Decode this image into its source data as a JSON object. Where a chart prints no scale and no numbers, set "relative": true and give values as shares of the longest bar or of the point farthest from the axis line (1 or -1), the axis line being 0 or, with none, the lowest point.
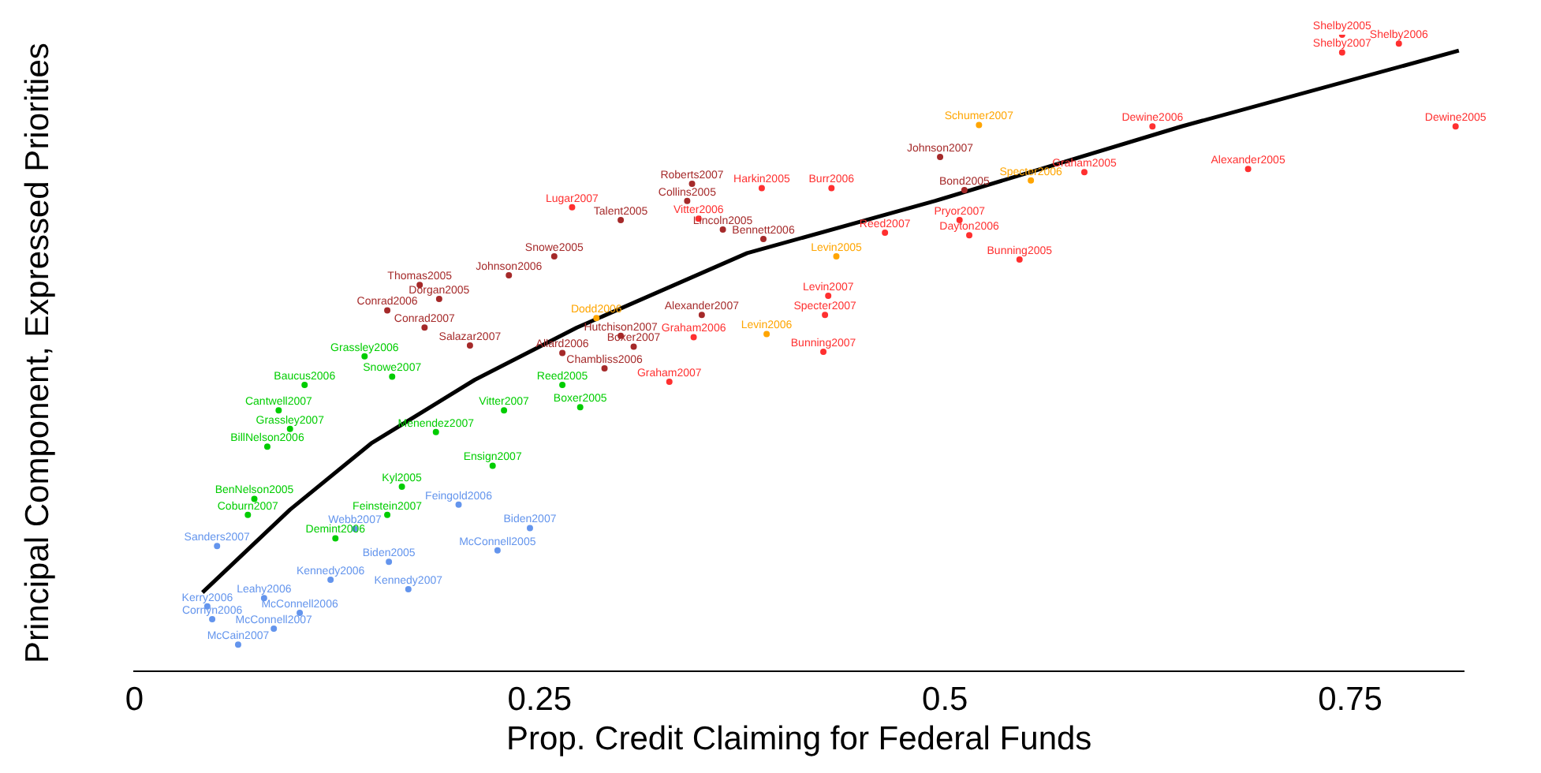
{
  "chart_data": {
    "type": "scatter",
    "xlabel": "Prop. Credit Claiming for Federal Funds",
    "ylabel": "Principal Component, Expressed Priorities",
    "relative": true,
    "xlim": [
      0,
      0.82
    ],
    "xticks": [
      0,
      0.25,
      0.5,
      0.75
    ],
    "grid": false,
    "legend": false,
    "marker": "circle",
    "series": [
      {
        "color": "#ff3030",
        "x": [
          0.745,
          0.745,
          0.78,
          0.628,
          0.815,
          0.687,
          0.586,
          0.546,
          0.509,
          0.515,
          0.27,
          0.348,
          0.387,
          0.43,
          0.345,
          0.33,
          0.426,
          0.425,
          0.428,
          0.463
        ],
        "values": [
          1.0,
          0.972,
          0.986,
          0.856,
          0.856,
          0.789,
          0.784,
          0.647,
          0.709,
          0.685,
          0.729,
          0.711,
          0.759,
          0.759,
          0.525,
          0.455,
          0.56,
          0.502,
          0.59,
          0.689
        ]
      },
      {
        "color": "#a52a2a",
        "x": [
          0.497,
          0.344,
          0.341,
          0.3,
          0.363,
          0.259,
          0.512,
          0.176,
          0.188,
          0.156,
          0.179,
          0.231,
          0.207,
          0.29,
          0.308,
          0.264,
          0.3,
          0.35,
          0.388
        ],
        "values": [
          0.808,
          0.766,
          0.739,
          0.709,
          0.694,
          0.652,
          0.756,
          0.607,
          0.585,
          0.567,
          0.54,
          0.622,
          0.512,
          0.476,
          0.51,
          0.5,
          0.527,
          0.56,
          0.679
        ]
      },
      {
        "color": "#ffa500",
        "x": [
          0.521,
          0.553,
          0.433,
          0.39,
          0.285
        ],
        "values": [
          0.858,
          0.771,
          0.652,
          0.53,
          0.555
        ]
      },
      {
        "color": "#00cd00",
        "x": [
          0.142,
          0.159,
          0.105,
          0.089,
          0.096,
          0.082,
          0.186,
          0.228,
          0.275,
          0.264,
          0.165,
          0.074,
          0.07,
          0.156,
          0.124,
          0.221
        ],
        "values": [
          0.495,
          0.463,
          0.45,
          0.41,
          0.381,
          0.353,
          0.376,
          0.41,
          0.415,
          0.45,
          0.29,
          0.271,
          0.246,
          0.246,
          0.209,
          0.323
        ]
      },
      {
        "color": "#6495ed",
        "x": [
          0.244,
          0.224,
          0.157,
          0.169,
          0.136,
          0.2,
          0.051,
          0.08,
          0.045,
          0.048,
          0.102,
          0.086,
          0.064,
          0.121
        ],
        "values": [
          0.225,
          0.19,
          0.172,
          0.129,
          0.224,
          0.262,
          0.197,
          0.115,
          0.102,
          0.082,
          0.092,
          0.067,
          0.042,
          0.144
        ]
      },
      {
        "type": "line",
        "marker": "none",
        "color": "#000000",
        "x": [
          0.042,
          0.096,
          0.146,
          0.21,
          0.273,
          0.378,
          0.494,
          0.646,
          0.817
        ],
        "values": [
          0.124,
          0.254,
          0.358,
          0.458,
          0.54,
          0.657,
          0.739,
          0.856,
          0.975
        ]
      }
    ],
    "annotations": [
      {
        "text": "Shelby2005",
        "x": 0.745,
        "y": 1.0
      },
      {
        "text": "Shelby2007",
        "x": 0.745,
        "y": 0.972
      },
      {
        "text": "Shelby2006",
        "x": 0.78,
        "y": 0.986
      },
      {
        "text": "Dewine2006",
        "x": 0.628,
        "y": 0.856
      },
      {
        "text": "Dewine2005",
        "x": 0.815,
        "y": 0.856
      },
      {
        "text": "Alexander2005",
        "x": 0.687,
        "y": 0.789
      },
      {
        "text": "Graham2005",
        "x": 0.586,
        "y": 0.784
      },
      {
        "text": "Bunning2005",
        "x": 0.546,
        "y": 0.647
      },
      {
        "text": "Pryor2007",
        "x": 0.509,
        "y": 0.709
      },
      {
        "text": "Dayton2006",
        "x": 0.515,
        "y": 0.685
      },
      {
        "text": "Lugar2007",
        "x": 0.27,
        "y": 0.729
      },
      {
        "text": "Vitter2006",
        "x": 0.348,
        "y": 0.711
      },
      {
        "text": "Harkin2005",
        "x": 0.387,
        "y": 0.759
      },
      {
        "text": "Burr2006",
        "x": 0.43,
        "y": 0.759
      },
      {
        "text": "Graham2006",
        "x": 0.345,
        "y": 0.525
      },
      {
        "text": "Graham2007",
        "x": 0.33,
        "y": 0.455
      },
      {
        "text": "Specter2007",
        "x": 0.426,
        "y": 0.56
      },
      {
        "text": "Bunning2007",
        "x": 0.425,
        "y": 0.502
      },
      {
        "text": "Levin2007",
        "x": 0.428,
        "y": 0.59
      },
      {
        "text": "Reed2007",
        "x": 0.463,
        "y": 0.689
      },
      {
        "text": "Johnson2007",
        "x": 0.497,
        "y": 0.808
      },
      {
        "text": "Roberts2007",
        "x": 0.344,
        "y": 0.766
      },
      {
        "text": "Collins2005",
        "x": 0.341,
        "y": 0.739
      },
      {
        "text": "Talent2005",
        "x": 0.3,
        "y": 0.709
      },
      {
        "text": "Lincoln2005",
        "x": 0.363,
        "y": 0.694
      },
      {
        "text": "Snowe2005",
        "x": 0.259,
        "y": 0.652
      },
      {
        "text": "Bond2005",
        "x": 0.512,
        "y": 0.756
      },
      {
        "text": "Thomas2005",
        "x": 0.176,
        "y": 0.607
      },
      {
        "text": "Dorgan2005",
        "x": 0.188,
        "y": 0.585
      },
      {
        "text": "Conrad2006",
        "x": 0.156,
        "y": 0.567
      },
      {
        "text": "Conrad2007",
        "x": 0.179,
        "y": 0.54
      },
      {
        "text": "Johnson2006",
        "x": 0.231,
        "y": 0.622
      },
      {
        "text": "Salazar2007",
        "x": 0.207,
        "y": 0.512
      },
      {
        "text": "Chambliss2006",
        "x": 0.29,
        "y": 0.476
      },
      {
        "text": "Boxer2007",
        "x": 0.308,
        "y": 0.51
      },
      {
        "text": "Allard2006",
        "x": 0.264,
        "y": 0.5
      },
      {
        "text": "Hutchison2007",
        "x": 0.3,
        "y": 0.527
      },
      {
        "text": "Alexander2007",
        "x": 0.35,
        "y": 0.56
      },
      {
        "text": "Bennett2006",
        "x": 0.388,
        "y": 0.679
      },
      {
        "text": "Schumer2007",
        "x": 0.521,
        "y": 0.858
      },
      {
        "text": "Specter2006",
        "x": 0.553,
        "y": 0.771
      },
      {
        "text": "Levin2005",
        "x": 0.433,
        "y": 0.652
      },
      {
        "text": "Levin2006",
        "x": 0.39,
        "y": 0.53
      },
      {
        "text": "Dodd2006",
        "x": 0.285,
        "y": 0.555
      },
      {
        "text": "Grassley2006",
        "x": 0.142,
        "y": 0.495
      },
      {
        "text": "Snowe2007",
        "x": 0.159,
        "y": 0.463
      },
      {
        "text": "Baucus2006",
        "x": 0.105,
        "y": 0.45
      },
      {
        "text": "Cantwell2007",
        "x": 0.089,
        "y": 0.41
      },
      {
        "text": "Grassley2007",
        "x": 0.096,
        "y": 0.381
      },
      {
        "text": "BillNelson2006",
        "x": 0.082,
        "y": 0.353
      },
      {
        "text": "Menendez2007",
        "x": 0.186,
        "y": 0.376
      },
      {
        "text": "Vitter2007",
        "x": 0.228,
        "y": 0.41
      },
      {
        "text": "Boxer2005",
        "x": 0.275,
        "y": 0.415
      },
      {
        "text": "Reed2005",
        "x": 0.264,
        "y": 0.45
      },
      {
        "text": "Kyl2005",
        "x": 0.165,
        "y": 0.29
      },
      {
        "text": "BenNelson2005",
        "x": 0.074,
        "y": 0.271
      },
      {
        "text": "Coburn2007",
        "x": 0.07,
        "y": 0.246
      },
      {
        "text": "Feinstein2007",
        "x": 0.156,
        "y": 0.246
      },
      {
        "text": "Demint2006",
        "x": 0.124,
        "y": 0.209
      },
      {
        "text": "Ensign2007",
        "x": 0.221,
        "y": 0.323
      },
      {
        "text": "Biden2007",
        "x": 0.244,
        "y": 0.225
      },
      {
        "text": "McConnell2005",
        "x": 0.224,
        "y": 0.19
      },
      {
        "text": "Biden2005",
        "x": 0.157,
        "y": 0.172
      },
      {
        "text": "Kennedy2007",
        "x": 0.169,
        "y": 0.129
      },
      {
        "text": "Webb2007",
        "x": 0.136,
        "y": 0.224
      },
      {
        "text": "Feingold2006",
        "x": 0.2,
        "y": 0.262
      },
      {
        "text": "Sanders2007",
        "x": 0.051,
        "y": 0.197
      },
      {
        "text": "Leahy2006",
        "x": 0.08,
        "y": 0.115
      },
      {
        "text": "Kerry2006",
        "x": 0.045,
        "y": 0.102
      },
      {
        "text": "Cornyn2006",
        "x": 0.048,
        "y": 0.082
      },
      {
        "text": "McConnell2006",
        "x": 0.102,
        "y": 0.092
      },
      {
        "text": "McConnell2007",
        "x": 0.086,
        "y": 0.067
      },
      {
        "text": "McCain2007",
        "x": 0.064,
        "y": 0.042
      },
      {
        "text": "Kennedy2006",
        "x": 0.121,
        "y": 0.144
      }
    ]
  }
}
